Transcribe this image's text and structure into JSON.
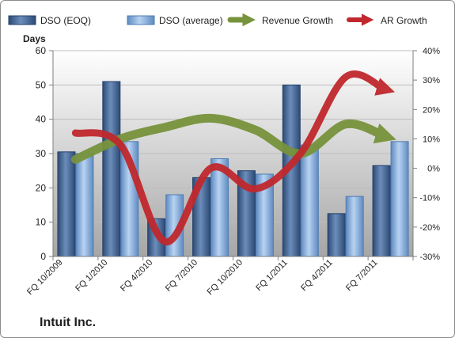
{
  "company": "Intuit Inc.",
  "colors": {
    "dso_eoq": "#4f6f9c",
    "dso_average": "#8db4e2",
    "revenue_growth": "#77933c",
    "ar_growth": "#c0282d"
  },
  "chart_data": {
    "type": "bar",
    "title": "",
    "xlabel": "",
    "ylabel": "Days",
    "categories": [
      "FQ 10/2009",
      "FQ 1/2010",
      "FQ 4/2010",
      "FQ 7/2010",
      "FQ 10/2010",
      "FQ 1/2011",
      "FQ 4/2011",
      "FQ 7/2011"
    ],
    "ylim": [
      0,
      60
    ],
    "yticks": [
      "0",
      "10",
      "20",
      "30",
      "40",
      "50",
      "60"
    ],
    "y2lim": [
      -30,
      40
    ],
    "y2ticks": [
      "-30%",
      "-20%",
      "-10%",
      "0%",
      "10%",
      "20%",
      "30%",
      "40%"
    ],
    "grid": true,
    "legend_position": "top",
    "series": [
      {
        "name": "DSO (EOQ)",
        "type": "bar",
        "axis": "left",
        "values": [
          30.5,
          51,
          11,
          23,
          25,
          50,
          12.5,
          26.5
        ]
      },
      {
        "name": "DSO (average)",
        "type": "bar",
        "axis": "left",
        "values": [
          30,
          33.5,
          18,
          28.5,
          24,
          32.5,
          17.5,
          33.5
        ]
      },
      {
        "name": "Revenue Growth",
        "type": "line",
        "axis": "right",
        "values": [
          3,
          10,
          14,
          17,
          13,
          5,
          15,
          11
        ]
      },
      {
        "name": "AR Growth",
        "type": "line",
        "axis": "right",
        "values": [
          12,
          8,
          -25,
          0,
          -7,
          5,
          31,
          27
        ]
      }
    ]
  }
}
